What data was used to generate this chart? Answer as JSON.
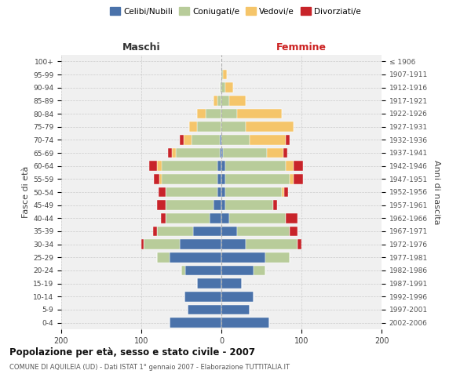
{
  "age_groups": [
    "0-4",
    "5-9",
    "10-14",
    "15-19",
    "20-24",
    "25-29",
    "30-34",
    "35-39",
    "40-44",
    "45-49",
    "50-54",
    "55-59",
    "60-64",
    "65-69",
    "70-74",
    "75-79",
    "80-84",
    "85-89",
    "90-94",
    "95-99",
    "100+"
  ],
  "birth_years": [
    "2002-2006",
    "1997-2001",
    "1992-1996",
    "1987-1991",
    "1982-1986",
    "1977-1981",
    "1972-1976",
    "1967-1971",
    "1962-1966",
    "1957-1961",
    "1952-1956",
    "1947-1951",
    "1942-1946",
    "1937-1941",
    "1932-1936",
    "1927-1931",
    "1922-1926",
    "1917-1921",
    "1912-1916",
    "1907-1911",
    "≤ 1906"
  ],
  "male": {
    "celibi": [
      65,
      42,
      46,
      30,
      45,
      65,
      52,
      35,
      15,
      10,
      5,
      5,
      5,
      2,
      2,
      0,
      0,
      0,
      0,
      0,
      0
    ],
    "coniugati": [
      0,
      0,
      0,
      0,
      5,
      15,
      45,
      45,
      55,
      60,
      65,
      70,
      70,
      55,
      35,
      30,
      20,
      5,
      2,
      0,
      0
    ],
    "vedovi": [
      0,
      0,
      0,
      0,
      0,
      0,
      0,
      0,
      0,
      0,
      0,
      2,
      5,
      5,
      10,
      10,
      10,
      5,
      0,
      0,
      0
    ],
    "divorziati": [
      0,
      0,
      0,
      0,
      0,
      0,
      3,
      5,
      5,
      10,
      8,
      7,
      10,
      5,
      5,
      0,
      0,
      0,
      0,
      0,
      0
    ]
  },
  "female": {
    "nubili": [
      60,
      35,
      40,
      25,
      40,
      55,
      30,
      20,
      10,
      5,
      5,
      5,
      5,
      2,
      0,
      0,
      0,
      0,
      0,
      0,
      0
    ],
    "coniugate": [
      0,
      0,
      0,
      0,
      15,
      30,
      65,
      65,
      70,
      60,
      70,
      80,
      75,
      55,
      35,
      30,
      20,
      10,
      5,
      2,
      0
    ],
    "vedove": [
      0,
      0,
      0,
      0,
      0,
      0,
      0,
      0,
      0,
      0,
      3,
      5,
      10,
      20,
      45,
      60,
      55,
      20,
      10,
      5,
      0
    ],
    "divorziate": [
      0,
      0,
      0,
      0,
      0,
      0,
      5,
      10,
      15,
      5,
      5,
      12,
      12,
      5,
      5,
      0,
      0,
      0,
      0,
      0,
      0
    ]
  },
  "colors": {
    "celibi": "#4a72aa",
    "coniugati": "#b8cc9a",
    "vedovi": "#f5c56a",
    "divorziati": "#c8242a"
  },
  "xlim": 200,
  "title": "Popolazione per età, sesso e stato civile - 2007",
  "subtitle": "COMUNE DI AQUILEIA (UD) - Dati ISTAT 1° gennaio 2007 - Elaborazione TUTTITALIA.IT",
  "ylabel_left": "Fasce di età",
  "ylabel_right": "Anni di nascita",
  "xlabel_maschi": "Maschi",
  "xlabel_femmine": "Femmine",
  "legend_labels": [
    "Celibi/Nubili",
    "Coniugati/e",
    "Vedovi/e",
    "Divorziati/e"
  ],
  "bg_color": "#ffffff",
  "plot_bg": "#f0f0f0",
  "grid_color": "#cccccc"
}
